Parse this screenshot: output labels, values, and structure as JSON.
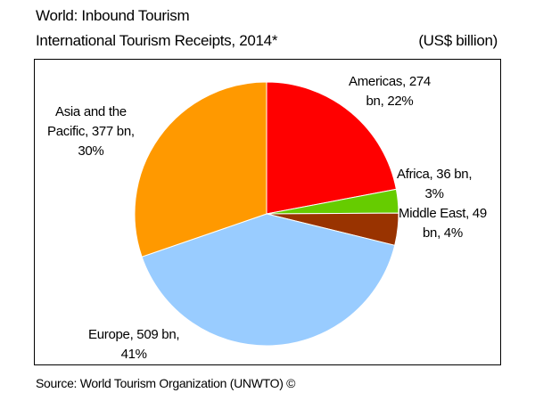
{
  "header": {
    "title": "World: Inbound Tourism",
    "subtitle": "International Tourism Receipts, 2014*",
    "unit": "(US$ billion)"
  },
  "footer": {
    "source": "Source: World Tourism Organization (UNWTO) ©"
  },
  "chart_data": {
    "type": "pie",
    "title": "International Tourism Receipts, 2014*",
    "unit": "US$ billion",
    "start_angle_deg": 0,
    "direction": "clockwise",
    "slices": [
      {
        "name": "Americas",
        "value": 274,
        "percent": 22,
        "color": "#ff0000",
        "label_lines": [
          "Americas, 274",
          "bn, 22%"
        ]
      },
      {
        "name": "Africa",
        "value": 36,
        "percent": 3,
        "color": "#66cc00",
        "label_lines": [
          "Africa, 36 bn,",
          "3%"
        ]
      },
      {
        "name": "Middle East",
        "value": 49,
        "percent": 4,
        "color": "#993300",
        "label_lines": [
          "Middle East, 49",
          "bn, 4%"
        ]
      },
      {
        "name": "Europe",
        "value": 509,
        "percent": 41,
        "color": "#99ccff",
        "label_lines": [
          "Europe, 509 bn,",
          "41%"
        ]
      },
      {
        "name": "Asia and the Pacific",
        "value": 377,
        "percent": 30,
        "color": "#ff9900",
        "label_lines": [
          "Asia and the",
          "Pacific, 377 bn,",
          "30%"
        ]
      }
    ],
    "legend": "none"
  }
}
